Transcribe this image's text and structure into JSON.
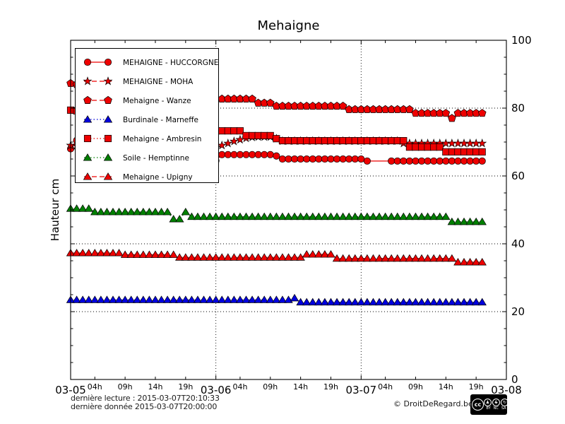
{
  "title": "Mehaigne",
  "ylabel": "Hauteur cm",
  "footer": {
    "line1": "dernière lecture : 2015-03-07T20:10:33",
    "line2": "dernière donnée  2015-03-07T20:00:00",
    "copyright": "© DroitDeRegard.be"
  },
  "cc_badge": {
    "logo": "cc",
    "items": [
      {
        "glyph": "♟",
        "label": "BY"
      },
      {
        "glyph": "$",
        "label": "NC"
      },
      {
        "glyph": "↻",
        "label": "SA"
      }
    ]
  },
  "chart_data": {
    "type": "line",
    "title": "Mehaigne",
    "ylabel": "Hauteur cm",
    "ylim": [
      0,
      100
    ],
    "yticks": [
      0,
      20,
      40,
      60,
      80,
      100
    ],
    "y_minor_step": 5,
    "grid_y": [
      20,
      40,
      60,
      80
    ],
    "x_start": "2015-03-05T00:00",
    "x_step_hours": 1,
    "xlim_hours": [
      0,
      72
    ],
    "grid_x_hours": [
      24,
      48
    ],
    "xticks": [
      {
        "h": 0,
        "label": "03-05",
        "major": true
      },
      {
        "h": 4,
        "label": "04h",
        "major": false
      },
      {
        "h": 9,
        "label": "09h",
        "major": false
      },
      {
        "h": 14,
        "label": "14h",
        "major": false
      },
      {
        "h": 19,
        "label": "19h",
        "major": false
      },
      {
        "h": 24,
        "label": "03-06",
        "major": true
      },
      {
        "h": 28,
        "label": "04h",
        "major": false
      },
      {
        "h": 33,
        "label": "09h",
        "major": false
      },
      {
        "h": 38,
        "label": "14h",
        "major": false
      },
      {
        "h": 43,
        "label": "19h",
        "major": false
      },
      {
        "h": 48,
        "label": "03-07",
        "major": true
      },
      {
        "h": 52,
        "label": "04h",
        "major": false
      },
      {
        "h": 57,
        "label": "09h",
        "major": false
      },
      {
        "h": 62,
        "label": "14h",
        "major": false
      },
      {
        "h": 67,
        "label": "19h",
        "major": false
      },
      {
        "h": 72,
        "label": "03-08",
        "major": true
      }
    ],
    "series": [
      {
        "name": "MEHAIGNE - HUCCORGNE",
        "color": "#ee0000",
        "marker": "circle",
        "line": "solid",
        "no_marker_hours": [
          50,
          51,
          52
        ],
        "values": [
          68,
          70.5,
          70.3,
          70.1,
          69.9,
          69.7,
          69.4,
          69.2,
          69,
          68.7,
          68.5,
          68.2,
          68,
          67.7,
          67.5,
          67.2,
          67,
          66.7,
          66.4,
          66.1,
          65.8,
          65.5,
          65.2,
          64.9,
          64.5,
          66.3,
          66.3,
          66.3,
          66.3,
          66.3,
          66.3,
          66.3,
          66.3,
          66.3,
          65.9,
          65,
          65,
          65,
          65,
          65,
          65,
          65,
          65,
          65,
          65,
          65,
          65,
          65,
          65,
          64.4,
          64.4,
          64.4,
          64.4,
          64.4,
          64.4,
          64.4,
          64.4,
          64.4,
          64.4,
          64.4,
          64.4,
          64.4,
          64.4,
          64.4,
          64.4,
          64.4,
          64.4,
          64.4,
          64.4
        ]
      },
      {
        "name": "MEHAIGNE - MOHA",
        "color": "#ee0000",
        "marker": "star",
        "line": "dashed",
        "values": [
          69,
          68.9,
          68.9,
          68.8,
          68.8,
          68.7,
          68.7,
          68.6,
          68.6,
          68.5,
          68.5,
          68.4,
          68.4,
          68.3,
          68.3,
          68.2,
          68.2,
          68.1,
          68.1,
          68,
          68,
          68.1,
          68.2,
          68.2,
          68.3,
          69,
          69.6,
          70.2,
          70.7,
          71.1,
          71.4,
          71.5,
          71.5,
          71.5,
          71,
          70.3,
          70.3,
          70.3,
          70.3,
          70.3,
          70.3,
          70.3,
          70.3,
          70.3,
          70.3,
          70.3,
          70.3,
          70.3,
          70.3,
          70.3,
          70.3,
          70.3,
          70.3,
          70.3,
          70.3,
          69.6,
          69.6,
          69.6,
          69.6,
          69.6,
          69.6,
          69.6,
          69.6,
          69.6,
          69.6,
          69.6,
          69.6,
          69.6,
          69.6
        ]
      },
      {
        "name": "Mehaigne - Wanze",
        "color": "#ee0000",
        "marker": "pentagon",
        "line": "dashed",
        "values": [
          87.3,
          87,
          86.8,
          86.5,
          86.2,
          86,
          85.7,
          85.5,
          85.2,
          85,
          84.8,
          84.6,
          84.4,
          84.2,
          84,
          83.8,
          83.6,
          83.4,
          83.3,
          83.2,
          83.1,
          83,
          82.9,
          82.8,
          82.7,
          82.7,
          82.7,
          82.7,
          82.7,
          82.7,
          82.7,
          81.5,
          81.5,
          81.5,
          80.6,
          80.6,
          80.6,
          80.6,
          80.6,
          80.6,
          80.6,
          80.6,
          80.6,
          80.6,
          80.6,
          80.6,
          79.6,
          79.6,
          79.6,
          79.6,
          79.6,
          79.6,
          79.6,
          79.6,
          79.6,
          79.6,
          79.6,
          78.5,
          78.5,
          78.5,
          78.5,
          78.5,
          78.5,
          77,
          78.5,
          78.5,
          78.5,
          78.5,
          78.5
        ]
      },
      {
        "name": "Burdinale - Marneffe",
        "color": "#0000dd",
        "marker": "triangle",
        "line": "dotted",
        "values": [
          23.5,
          23.5,
          23.5,
          23.5,
          23.5,
          23.5,
          23.5,
          23.5,
          23.5,
          23.5,
          23.5,
          23.5,
          23.5,
          23.5,
          23.5,
          23.5,
          23.5,
          23.5,
          23.5,
          23.5,
          23.5,
          23.5,
          23.5,
          23.5,
          23.5,
          23.5,
          23.5,
          23.5,
          23.5,
          23.5,
          23.5,
          23.5,
          23.5,
          23.5,
          23.5,
          23.5,
          23.5,
          24,
          22.8,
          22.8,
          22.8,
          22.8,
          22.8,
          22.8,
          22.8,
          22.8,
          22.8,
          22.8,
          22.8,
          22.8,
          22.8,
          22.8,
          22.8,
          22.8,
          22.8,
          22.8,
          22.8,
          22.8,
          22.8,
          22.8,
          22.8,
          22.8,
          22.8,
          22.8,
          22.8,
          22.8,
          22.8,
          22.8,
          22.8
        ]
      },
      {
        "name": "Mehaigne - Ambresin",
        "color": "#ee0000",
        "marker": "square",
        "line": "dotted",
        "values": [
          79.4,
          79.2,
          79,
          78.7,
          78.4,
          78.1,
          77.8,
          77.5,
          77.2,
          76.9,
          76.6,
          76.3,
          76,
          75.7,
          75.4,
          75.1,
          74.8,
          74.6,
          74.4,
          74.2,
          74,
          73.8,
          73.6,
          73.4,
          73.3,
          73.3,
          73.3,
          73.3,
          73.3,
          71.9,
          71.9,
          71.9,
          71.9,
          71.9,
          71,
          70.4,
          70.4,
          70.4,
          70.4,
          70.4,
          70.4,
          70.4,
          70.4,
          70.4,
          70.4,
          70.4,
          70.4,
          70.4,
          70.4,
          70.4,
          70.4,
          70.4,
          70.4,
          70.4,
          70.4,
          70.4,
          68.5,
          68.5,
          68.5,
          68.5,
          68.5,
          68.5,
          67.1,
          67.1,
          67.1,
          67.1,
          67.1,
          67.1,
          67.1
        ]
      },
      {
        "name": "Soile - Hemptinne",
        "color": "#008000",
        "marker": "triangle",
        "line": "dotted",
        "values": [
          50.4,
          50.4,
          50.4,
          50.4,
          49.4,
          49.4,
          49.4,
          49.4,
          49.4,
          49.4,
          49.4,
          49.4,
          49.4,
          49.4,
          49.4,
          49.4,
          49.4,
          47.3,
          47.3,
          49.4,
          48,
          48,
          48,
          48,
          48,
          48,
          48,
          48,
          48,
          48,
          48,
          48,
          48,
          48,
          48,
          48,
          48,
          48,
          48,
          48,
          48,
          48,
          48,
          48,
          48,
          48,
          48,
          48,
          48,
          48,
          48,
          48,
          48,
          48,
          48,
          48,
          48,
          48,
          48,
          48,
          48,
          48,
          48,
          46.5,
          46.5,
          46.5,
          46.5,
          46.5,
          46.5
        ]
      },
      {
        "name": "Mehaigne - Upigny",
        "color": "#ee0000",
        "marker": "triangle",
        "line": "dashed",
        "values": [
          37.3,
          37.3,
          37.3,
          37.3,
          37.3,
          37.3,
          37.3,
          37.3,
          37.3,
          36.8,
          36.8,
          36.8,
          36.8,
          36.8,
          36.8,
          36.8,
          36.8,
          36.8,
          36,
          36,
          36,
          36,
          36,
          36,
          36,
          36,
          36,
          36,
          36,
          36,
          36,
          36,
          36,
          36,
          36,
          36,
          36,
          36,
          36,
          36.9,
          36.9,
          36.9,
          36.9,
          36.9,
          35.7,
          35.7,
          35.7,
          35.7,
          35.7,
          35.7,
          35.7,
          35.7,
          35.7,
          35.7,
          35.7,
          35.7,
          35.7,
          35.7,
          35.7,
          35.7,
          35.7,
          35.7,
          35.7,
          35.7,
          34.6,
          34.6,
          34.6,
          34.6,
          34.6
        ]
      }
    ]
  }
}
